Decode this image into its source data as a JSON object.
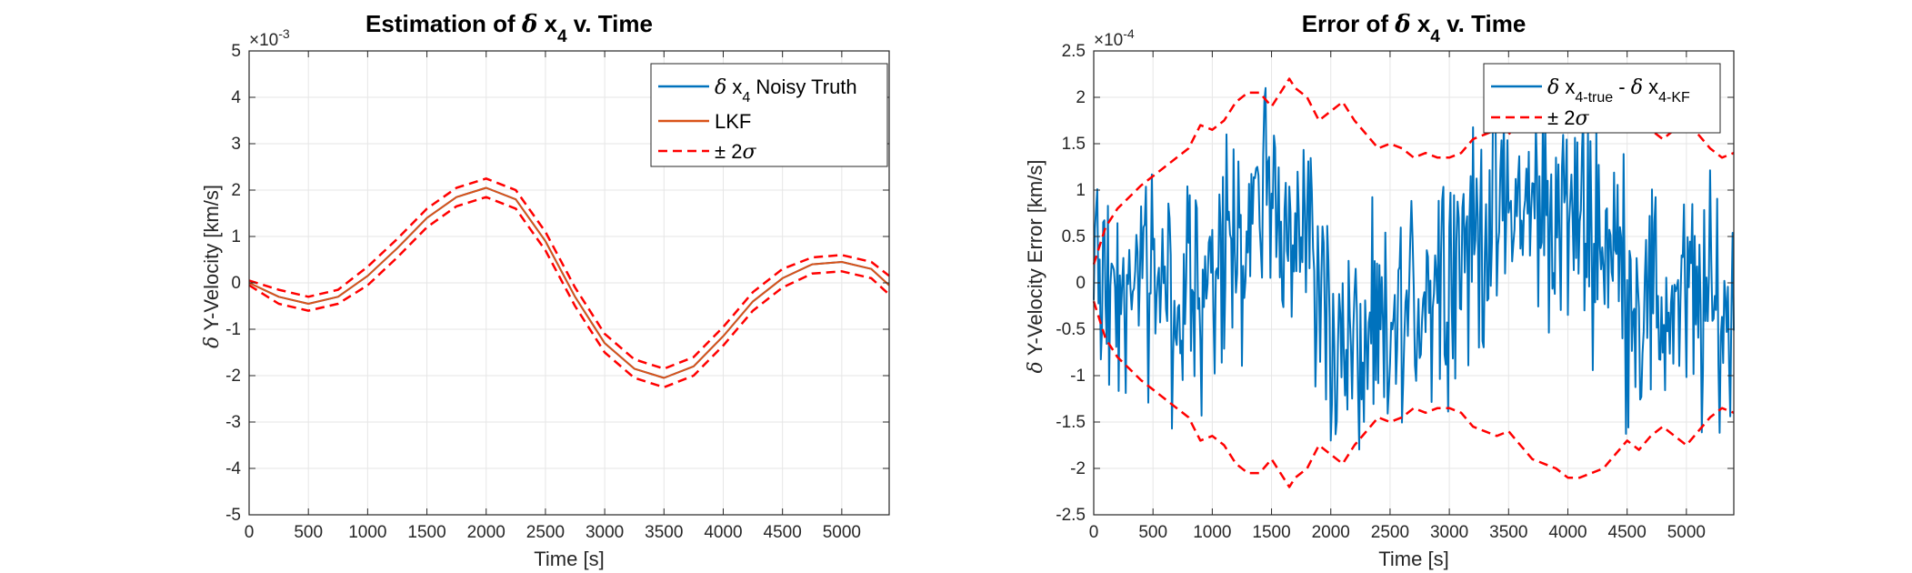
{
  "chart_data": [
    {
      "type": "line",
      "title": {
        "prefix": "Estimation of ",
        "symbol": "δ",
        "var": " x",
        "sub": "4",
        "suffix": " v. Time"
      },
      "xlabel": "Time [s]",
      "ylabel": {
        "symbol": "δ",
        "text": " Y-Velocity [km/s]"
      },
      "exponent": {
        "base": "×10",
        "power": "-3"
      },
      "xlim": [
        0,
        5400
      ],
      "ylim": [
        -5,
        5
      ],
      "xticks": [
        "0",
        "500",
        "1000",
        "1500",
        "2000",
        "2500",
        "3000",
        "3500",
        "4000",
        "4500",
        "5000"
      ],
      "yticks": [
        "-5",
        "-4",
        "-3",
        "-2",
        "-1",
        "0",
        "1",
        "2",
        "3",
        "4",
        "5"
      ],
      "grid": true,
      "legend_position": "top-right",
      "legend": [
        {
          "symbol": "δ",
          "text": " x",
          "sub": "4",
          "after": " Noisy Truth",
          "color": "#0072BD",
          "dash": ""
        },
        {
          "symbol": "",
          "text": "LKF",
          "sub": "",
          "after": "",
          "color": "#D95319",
          "dash": ""
        },
        {
          "symbol": "±",
          "text": " 2",
          "sub": "",
          "after": "σ",
          "color": "#FF0000",
          "dash": "10,6"
        }
      ],
      "series": [
        {
          "name": "δ x4 Noisy Truth",
          "color": "#0072BD",
          "x": [
            0,
            250,
            500,
            750,
            1000,
            1250,
            1500,
            1750,
            2000,
            2250,
            2500,
            2750,
            3000,
            3250,
            3500,
            3750,
            4000,
            4250,
            4500,
            4750,
            5000,
            5250,
            5400
          ],
          "y": [
            0.0,
            -0.3,
            -0.45,
            -0.3,
            0.15,
            0.75,
            1.4,
            1.85,
            2.05,
            1.8,
            0.9,
            -0.3,
            -1.3,
            -1.85,
            -2.05,
            -1.8,
            -1.15,
            -0.4,
            0.1,
            0.4,
            0.45,
            0.3,
            -0.05
          ]
        },
        {
          "name": "LKF",
          "color": "#D95319",
          "x": [
            0,
            250,
            500,
            750,
            1000,
            1250,
            1500,
            1750,
            2000,
            2250,
            2500,
            2750,
            3000,
            3250,
            3500,
            3750,
            4000,
            4250,
            4500,
            4750,
            5000,
            5250,
            5400
          ],
          "y": [
            0.0,
            -0.3,
            -0.45,
            -0.3,
            0.15,
            0.75,
            1.4,
            1.85,
            2.05,
            1.8,
            0.9,
            -0.3,
            -1.3,
            -1.85,
            -2.05,
            -1.8,
            -1.15,
            -0.4,
            0.1,
            0.4,
            0.45,
            0.3,
            -0.05
          ]
        },
        {
          "name": "+2σ",
          "color": "#FF0000",
          "dash": "10,6",
          "x": [
            0,
            250,
            500,
            750,
            1000,
            1250,
            1500,
            1750,
            2000,
            2250,
            2500,
            2750,
            3000,
            3250,
            3500,
            3750,
            4000,
            4250,
            4500,
            4750,
            5000,
            5250,
            5400
          ],
          "y": [
            0.05,
            -0.15,
            -0.3,
            -0.15,
            0.35,
            0.95,
            1.6,
            2.05,
            2.25,
            2.0,
            1.1,
            -0.1,
            -1.1,
            -1.65,
            -1.85,
            -1.6,
            -0.95,
            -0.2,
            0.3,
            0.55,
            0.6,
            0.45,
            0.15
          ]
        },
        {
          "name": "-2σ",
          "color": "#FF0000",
          "dash": "10,6",
          "x": [
            0,
            250,
            500,
            750,
            1000,
            1250,
            1500,
            1750,
            2000,
            2250,
            2500,
            2750,
            3000,
            3250,
            3500,
            3750,
            4000,
            4250,
            4500,
            4750,
            5000,
            5250,
            5400
          ],
          "y": [
            -0.05,
            -0.45,
            -0.6,
            -0.45,
            -0.05,
            0.55,
            1.2,
            1.65,
            1.85,
            1.6,
            0.7,
            -0.5,
            -1.5,
            -2.05,
            -2.25,
            -2.0,
            -1.35,
            -0.6,
            -0.1,
            0.2,
            0.25,
            0.1,
            -0.25
          ]
        }
      ]
    },
    {
      "type": "line",
      "title": {
        "prefix": "Error of ",
        "symbol": "δ",
        "var": " x",
        "sub": "4",
        "suffix": " v. Time"
      },
      "xlabel": "Time [s]",
      "ylabel": {
        "symbol": "δ",
        "text": " Y-Velocity Error [km/s]"
      },
      "exponent": {
        "base": "×10",
        "power": "-4"
      },
      "xlim": [
        0,
        5400
      ],
      "ylim": [
        -2.5,
        2.5
      ],
      "xticks": [
        "0",
        "500",
        "1000",
        "1500",
        "2000",
        "2500",
        "3000",
        "3500",
        "4000",
        "4500",
        "5000"
      ],
      "yticks": [
        "-2.5",
        "-2",
        "-1.5",
        "-1",
        "-0.5",
        "0",
        "0.5",
        "1",
        "1.5",
        "2",
        "2.5"
      ],
      "grid": true,
      "legend_position": "top-right",
      "legend": [
        {
          "symbol": "δ",
          "text": " x",
          "sub": "4-true",
          "after": " - ",
          "symbol2": "δ",
          "text2": " x",
          "sub2": "4-KF",
          "color": "#0072BD",
          "dash": ""
        },
        {
          "symbol": "±",
          "text": " 2",
          "sub": "",
          "after": "σ",
          "color": "#FF0000",
          "dash": "10,6"
        }
      ],
      "series": [
        {
          "name": "δ x4-true - δ x4-KF",
          "color": "#0072BD",
          "noise": true,
          "x": [
            0,
            300,
            600,
            900,
            1200,
            1400,
            1600,
            1800,
            2000,
            2200,
            2400,
            2600,
            2800,
            3000,
            3200,
            3400,
            3600,
            3800,
            4000,
            4200,
            4400,
            4600,
            4800,
            5000,
            5200,
            5400
          ],
          "y": [
            0.1,
            0.1,
            0.0,
            0.0,
            0.2,
            0.9,
            0.9,
            0.5,
            -0.5,
            -0.8,
            -0.8,
            -0.5,
            0.0,
            0.3,
            0.5,
            0.7,
            0.8,
            0.8,
            0.7,
            0.7,
            0.3,
            -0.2,
            -0.3,
            -0.2,
            -0.3,
            -0.4
          ]
        },
        {
          "name": "+2σ",
          "color": "#FF0000",
          "dash": "10,6",
          "x": [
            0,
            100,
            200,
            400,
            600,
            800,
            900,
            1000,
            1100,
            1200,
            1300,
            1400,
            1500,
            1600,
            1650,
            1700,
            1800,
            1900,
            2000,
            2100,
            2200,
            2300,
            2400,
            2500,
            2600,
            2700,
            2800,
            2900,
            3000,
            3100,
            3200,
            3300,
            3400,
            3500,
            3600,
            3700,
            3800,
            3900,
            4000,
            4100,
            4200,
            4300,
            4400,
            4500,
            4600,
            4700,
            4800,
            4900,
            5000,
            5100,
            5200,
            5300,
            5400
          ],
          "y": [
            0.2,
            0.6,
            0.8,
            1.05,
            1.25,
            1.45,
            1.7,
            1.65,
            1.75,
            1.95,
            2.05,
            2.05,
            1.9,
            2.1,
            2.2,
            2.1,
            2.0,
            1.75,
            1.85,
            1.95,
            1.75,
            1.6,
            1.45,
            1.5,
            1.45,
            1.35,
            1.4,
            1.35,
            1.35,
            1.4,
            1.55,
            1.6,
            1.65,
            1.6,
            1.75,
            1.9,
            1.95,
            2.0,
            2.1,
            2.1,
            2.05,
            2.0,
            1.85,
            1.7,
            1.8,
            1.65,
            1.55,
            1.65,
            1.75,
            1.6,
            1.45,
            1.35,
            1.4
          ]
        },
        {
          "name": "-2σ",
          "color": "#FF0000",
          "dash": "10,6",
          "x": [
            0,
            100,
            200,
            400,
            600,
            800,
            900,
            1000,
            1100,
            1200,
            1300,
            1400,
            1500,
            1600,
            1650,
            1700,
            1800,
            1900,
            2000,
            2100,
            2200,
            2300,
            2400,
            2500,
            2600,
            2700,
            2800,
            2900,
            3000,
            3100,
            3200,
            3300,
            3400,
            3500,
            3600,
            3700,
            3800,
            3900,
            4000,
            4100,
            4200,
            4300,
            4400,
            4500,
            4600,
            4700,
            4800,
            4900,
            5000,
            5100,
            5200,
            5300,
            5400
          ],
          "y": [
            -0.2,
            -0.6,
            -0.8,
            -1.05,
            -1.25,
            -1.45,
            -1.7,
            -1.65,
            -1.75,
            -1.95,
            -2.05,
            -2.05,
            -1.9,
            -2.1,
            -2.2,
            -2.1,
            -2.0,
            -1.75,
            -1.85,
            -1.95,
            -1.75,
            -1.6,
            -1.45,
            -1.5,
            -1.45,
            -1.35,
            -1.4,
            -1.35,
            -1.35,
            -1.4,
            -1.55,
            -1.6,
            -1.65,
            -1.6,
            -1.75,
            -1.9,
            -1.95,
            -2.0,
            -2.1,
            -2.1,
            -2.05,
            -2.0,
            -1.85,
            -1.7,
            -1.8,
            -1.65,
            -1.55,
            -1.65,
            -1.75,
            -1.6,
            -1.45,
            -1.35,
            -1.4
          ]
        }
      ]
    }
  ]
}
